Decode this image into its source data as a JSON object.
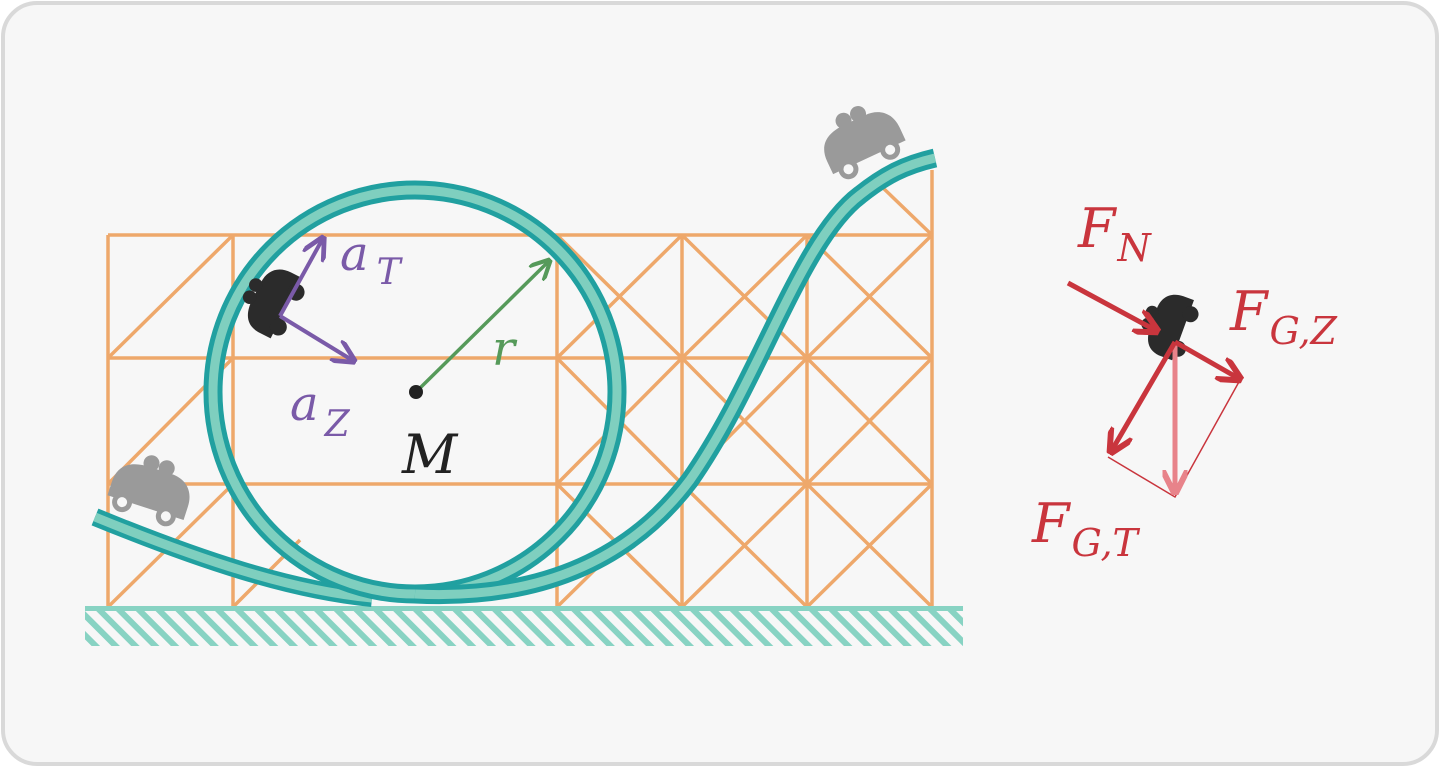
{
  "labels": {
    "a_main": "a",
    "a_t_sub": "T",
    "a_z_sub": "Z",
    "r": "r",
    "center": "M",
    "f_main": "F",
    "f_n_sub": "N",
    "f_gz_sub": "G,Z",
    "f_gt_sub": "G,T"
  },
  "colors": {
    "frame_border": "#d9d9d9",
    "background": "#f7f7f7",
    "scaffold": "#eea86b",
    "track": "#21a0a0",
    "track_fill": "#7fcfbf",
    "ground": "#88d3c3",
    "acceleration": "#7a5aa8",
    "radius": "#569a5a",
    "force": "#c9353d",
    "force_light": "#e8838a",
    "car_dark": "#2b2b2b",
    "car_grey": "#9a9a9a",
    "text_dark": "#222222"
  }
}
